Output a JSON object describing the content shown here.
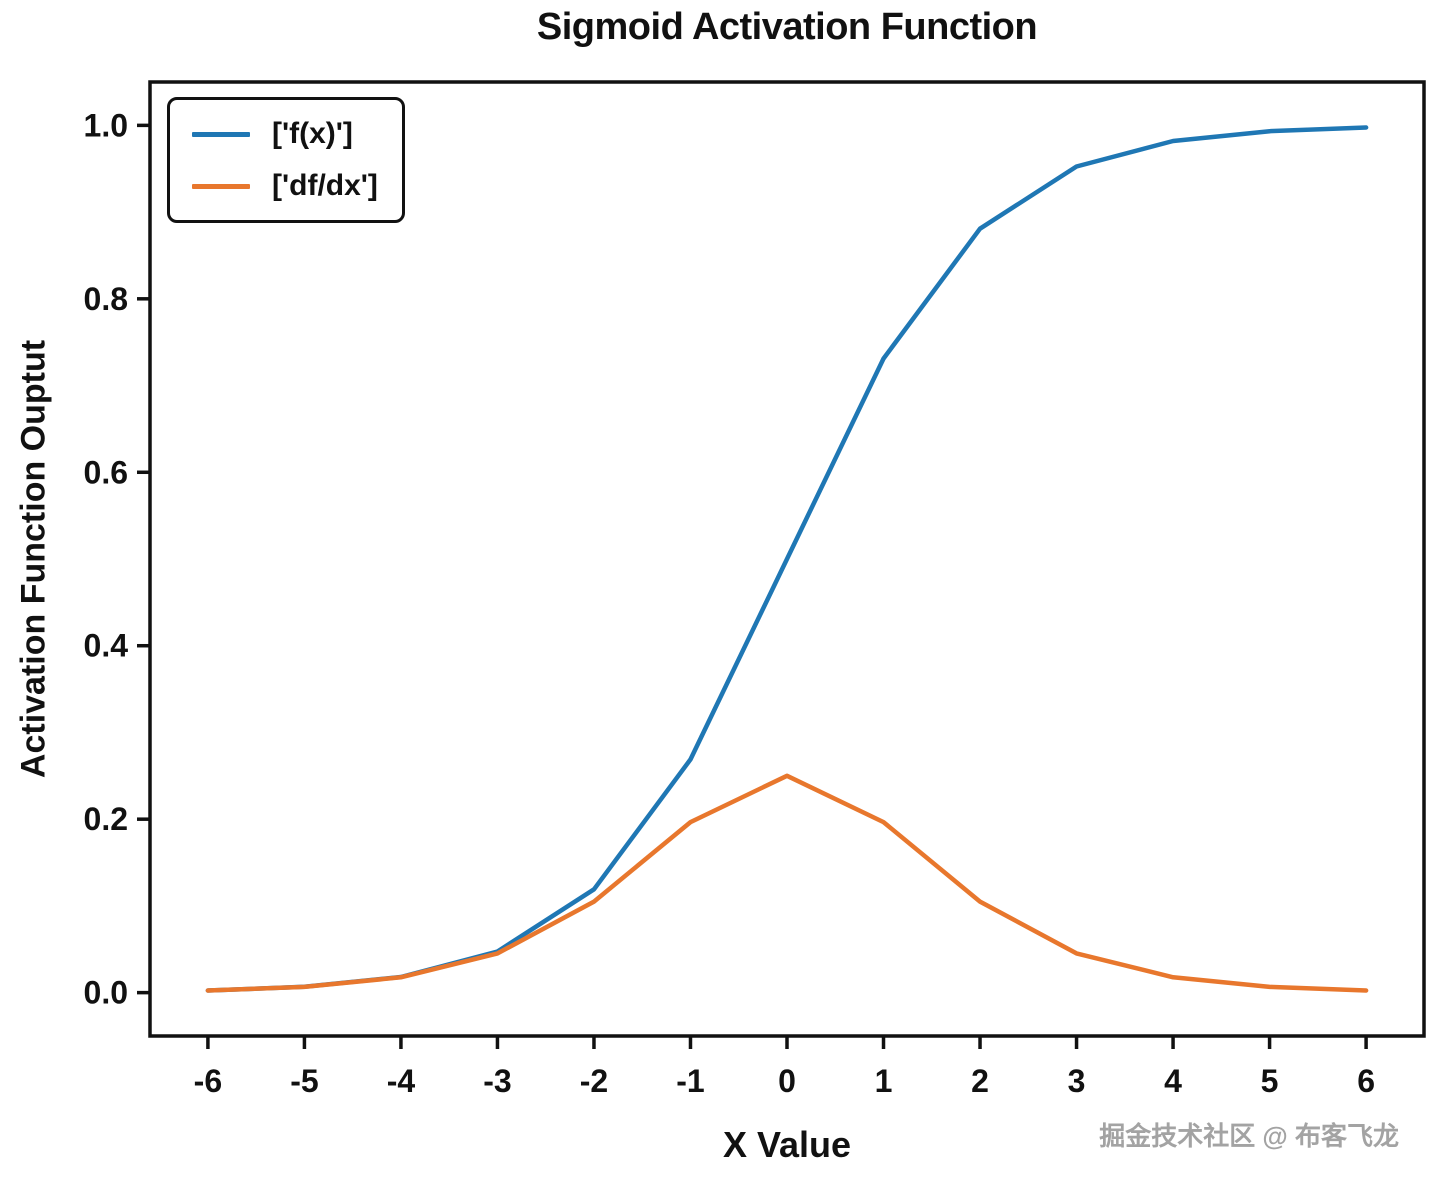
{
  "watermark": {
    "text": "掘金技术社区 @ 布客飞龙",
    "color": "#a3a3a3"
  },
  "chart_data": {
    "type": "line",
    "title": "Sigmoid Activation Function",
    "xlabel": "X Value",
    "ylabel": "Activation Function Ouptut",
    "x": [
      -6,
      -5,
      -4,
      -3,
      -2,
      -1,
      0,
      1,
      2,
      3,
      4,
      5,
      6
    ],
    "series": [
      {
        "name": "['f(x)']",
        "color": "#1f77b4",
        "values": [
          0.0025,
          0.0067,
          0.018,
          0.0474,
          0.1192,
          0.2689,
          0.5,
          0.7311,
          0.8808,
          0.9526,
          0.982,
          0.9933,
          0.9975
        ]
      },
      {
        "name": "['df/dx']",
        "color": "#e8772d",
        "values": [
          0.0025,
          0.0066,
          0.0177,
          0.0452,
          0.105,
          0.1966,
          0.25,
          0.1966,
          0.105,
          0.0452,
          0.0177,
          0.0066,
          0.0025
        ]
      }
    ],
    "xlim": [
      -6.6,
      6.6
    ],
    "ylim": [
      -0.05,
      1.05
    ],
    "x_ticks": [
      -6,
      -5,
      -4,
      -3,
      -2,
      -1,
      0,
      1,
      2,
      3,
      4,
      5,
      6
    ],
    "x_tick_labels": [
      "-6",
      "-5",
      "-4",
      "-3",
      "-2",
      "-1",
      "0",
      "1",
      "2",
      "3",
      "4",
      "5",
      "6"
    ],
    "y_ticks": [
      0.0,
      0.2,
      0.4,
      0.6,
      0.8,
      1.0
    ],
    "y_tick_labels": [
      "0.0",
      "0.2",
      "0.4",
      "0.6",
      "0.8",
      "1.0"
    ],
    "grid": false,
    "legend_position": "upper-left",
    "axis_color": "#111111",
    "line_width": 4.5
  }
}
